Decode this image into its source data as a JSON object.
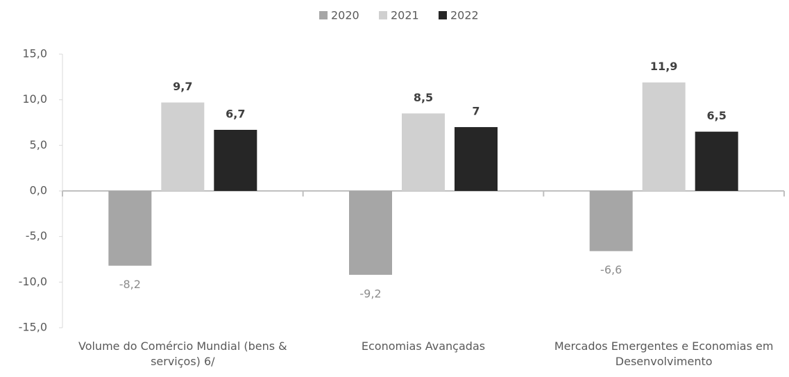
{
  "chart_data": {
    "type": "bar",
    "categories": [
      "Volume do Comércio Mundial (bens & serviços) 6/",
      "Economias Avançadas",
      "Mercados Emergentes e Economias em Desenvolvimento"
    ],
    "series": [
      {
        "name": "2020",
        "color": "#a6a6a6",
        "values": [
          -8.2,
          -9.2,
          -6.6
        ],
        "value_labels": [
          "-8,2",
          "-9,2",
          "-6,6"
        ]
      },
      {
        "name": "2021",
        "color": "#d0d0d0",
        "values": [
          9.7,
          8.5,
          11.9
        ],
        "value_labels": [
          "9,7",
          "8,5",
          "11,9"
        ]
      },
      {
        "name": "2022",
        "color": "#262626",
        "values": [
          6.7,
          7,
          6.5
        ],
        "value_labels": [
          "6,7",
          "7",
          "6,5"
        ]
      }
    ],
    "ylim": [
      -15,
      15
    ],
    "yticks": [
      {
        "value": 15,
        "label": "15,0"
      },
      {
        "value": 10,
        "label": "10,0"
      },
      {
        "value": 5,
        "label": "5,0"
      },
      {
        "value": 0,
        "label": "0,0"
      },
      {
        "value": -5,
        "label": "-5,0"
      },
      {
        "value": -10,
        "label": "-10,0"
      },
      {
        "value": -15,
        "label": "-15,0"
      }
    ],
    "legend": "top"
  }
}
